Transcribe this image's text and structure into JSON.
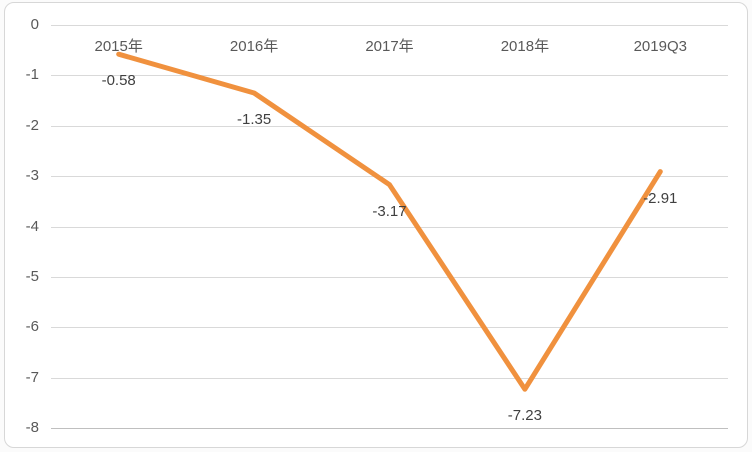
{
  "chart_data": {
    "type": "line",
    "title": "",
    "xlabel": "",
    "ylabel": "",
    "categories": [
      "2015年",
      "2016年",
      "2017年",
      "2018年",
      "2019Q3"
    ],
    "series": [
      {
        "name": "",
        "values": [
          -0.58,
          -1.35,
          -3.17,
          -7.23,
          -2.91
        ],
        "data_labels": [
          "-0.58",
          "-1.35",
          "-3.17",
          "-7.23",
          "-2.91"
        ],
        "color": "#F0913E"
      }
    ],
    "ylim": [
      -8,
      0
    ],
    "yticks": [
      0,
      -1,
      -2,
      -3,
      -4,
      -5,
      -6,
      -7,
      -8
    ],
    "ytick_labels": [
      "0",
      "-1",
      "-2",
      "-3",
      "-4",
      "-5",
      "-6",
      "-7",
      "-8"
    ],
    "grid": true,
    "legend": false,
    "data_label_position": "below",
    "colors": {
      "line": "#F0913E",
      "gridline": "#D9D9D9",
      "axis_line": "#BFBFBF",
      "tick_text": "#595959",
      "data_label_text": "#404040",
      "frame_border": "#D7D7D7",
      "background": "#FFFFFF"
    }
  }
}
